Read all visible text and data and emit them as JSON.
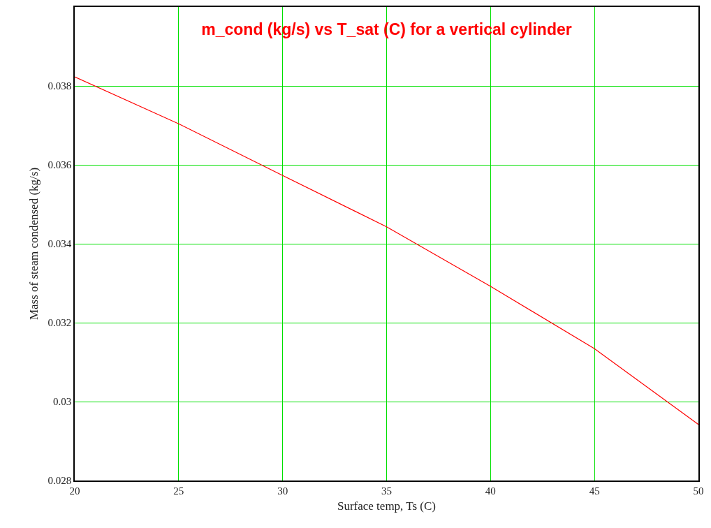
{
  "chart_data": {
    "type": "line",
    "title": "m_cond (kg/s) vs T_sat (C) for a vertical cylinder",
    "xlabel": "Surface temp, Ts (C)",
    "ylabel": "Mass of steam condensed (kg/s)",
    "x": [
      20,
      25,
      30,
      35,
      40,
      45,
      50
    ],
    "series": [
      {
        "color": "#ff0000",
        "values": [
          0.03823,
          0.03704,
          0.03573,
          0.03443,
          0.03292,
          0.03134,
          0.02942
        ]
      }
    ],
    "xlim": [
      20,
      50
    ],
    "xticks": [
      20,
      25,
      30,
      35,
      40,
      45,
      50
    ],
    "ylim": [
      0.028,
      0.04
    ],
    "yticks": [
      0.028,
      0.03,
      0.032,
      0.034,
      0.036,
      0.038
    ],
    "grid": true,
    "marker": "none",
    "line_style": "solid"
  }
}
